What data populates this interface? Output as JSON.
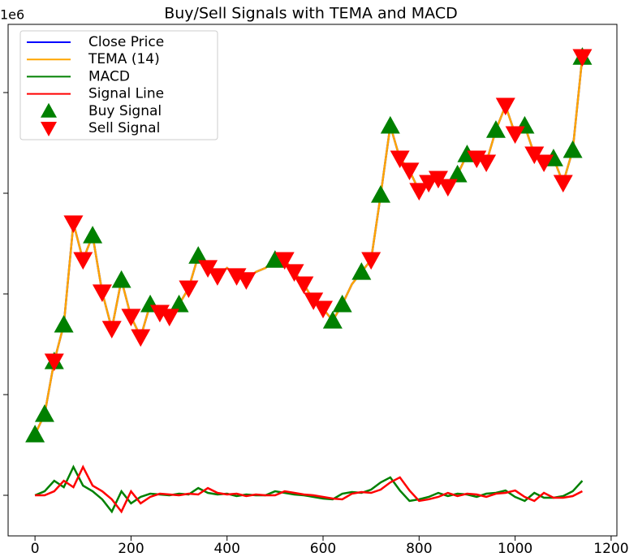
{
  "chart_data": {
    "type": "line",
    "title": "Buy/Sell Signals with TEMA and MACD",
    "y_offset_label": "1e6",
    "legend": "upper left",
    "xlim": [
      -56,
      1212
    ],
    "xticks": [
      0,
      200,
      400,
      600,
      800,
      1000,
      1200
    ],
    "ylim": [
      -201613,
      2338710
    ],
    "yticks": [
      0,
      500000,
      1000000,
      1500000,
      2000000
    ],
    "x": [
      0,
      20,
      40,
      60,
      80,
      100,
      120,
      140,
      160,
      180,
      200,
      220,
      240,
      260,
      280,
      300,
      320,
      340,
      360,
      380,
      400,
      420,
      440,
      460,
      480,
      500,
      520,
      540,
      560,
      580,
      600,
      620,
      640,
      660,
      680,
      700,
      720,
      740,
      760,
      780,
      800,
      820,
      840,
      860,
      880,
      900,
      920,
      940,
      960,
      980,
      1000,
      1020,
      1040,
      1060,
      1080,
      1100,
      1120,
      1140
    ],
    "series": [
      {
        "name": "Close Price",
        "color": "#0000ff",
        "kind": "line",
        "values": [
          302000,
          403000,
          665000,
          847000,
          1351000,
          1169000,
          1290000,
          1008000,
          827000,
          1069000,
          887000,
          786000,
          948000,
          907000,
          887000,
          948000,
          1028000,
          1189000,
          1129000,
          1089000,
          1129000,
          1089000,
          1069000,
          1109000,
          1129000,
          1169000,
          1169000,
          1109000,
          1048000,
          968000,
          927000,
          867000,
          948000,
          1048000,
          1109000,
          1169000,
          1492000,
          1835000,
          1673000,
          1613000,
          1512000,
          1552000,
          1572000,
          1532000,
          1593000,
          1693000,
          1673000,
          1653000,
          1814000,
          1935000,
          1794000,
          1835000,
          1693000,
          1653000,
          1673000,
          1552000,
          1714000,
          2177000
        ]
      },
      {
        "name": "TEMA (14)",
        "color": "#ffa500",
        "kind": "line",
        "values": [
          302000,
          403000,
          665000,
          847000,
          1351000,
          1169000,
          1290000,
          1008000,
          827000,
          1069000,
          887000,
          786000,
          948000,
          907000,
          887000,
          948000,
          1028000,
          1189000,
          1129000,
          1089000,
          1129000,
          1089000,
          1069000,
          1109000,
          1129000,
          1169000,
          1169000,
          1109000,
          1048000,
          968000,
          927000,
          867000,
          948000,
          1048000,
          1109000,
          1169000,
          1492000,
          1835000,
          1673000,
          1613000,
          1512000,
          1552000,
          1572000,
          1532000,
          1593000,
          1693000,
          1673000,
          1653000,
          1814000,
          1935000,
          1794000,
          1835000,
          1693000,
          1653000,
          1673000,
          1552000,
          1714000,
          2177000
        ]
      },
      {
        "name": "MACD",
        "color": "#008000",
        "kind": "line",
        "values": [
          0,
          20000,
          72000,
          40000,
          141000,
          48000,
          20000,
          -20000,
          -81000,
          20000,
          -40000,
          -8000,
          8000,
          4000,
          0,
          8000,
          4000,
          36000,
          12000,
          4000,
          8000,
          -4000,
          4000,
          0,
          0,
          20000,
          12000,
          4000,
          0,
          -8000,
          -16000,
          -20000,
          8000,
          16000,
          12000,
          28000,
          64000,
          89000,
          24000,
          -28000,
          -20000,
          -8000,
          12000,
          -4000,
          8000,
          4000,
          -8000,
          8000,
          12000,
          24000,
          -8000,
          -28000,
          12000,
          -12000,
          -12000,
          -4000,
          20000,
          72000
        ]
      },
      {
        "name": "Signal Line",
        "color": "#ff0000",
        "kind": "line",
        "values": [
          0,
          0,
          20000,
          72000,
          40000,
          141000,
          48000,
          20000,
          -20000,
          -81000,
          20000,
          -40000,
          -8000,
          8000,
          4000,
          0,
          8000,
          4000,
          36000,
          12000,
          4000,
          8000,
          -4000,
          4000,
          0,
          0,
          20000,
          12000,
          4000,
          0,
          -8000,
          -16000,
          -20000,
          8000,
          16000,
          12000,
          28000,
          64000,
          89000,
          24000,
          -28000,
          -20000,
          -8000,
          12000,
          -4000,
          8000,
          4000,
          -8000,
          8000,
          12000,
          24000,
          -8000,
          -28000,
          12000,
          -12000,
          -12000,
          -4000,
          20000
        ]
      },
      {
        "name": "Buy Signal",
        "color": "#008000",
        "kind": "scatter",
        "marker": "^",
        "x": [
          0,
          20,
          40,
          60,
          120,
          180,
          240,
          300,
          340,
          500,
          620,
          640,
          680,
          720,
          740,
          880,
          900,
          960,
          1020,
          1080,
          1120,
          1140
        ],
        "values": [
          302000,
          403000,
          665000,
          847000,
          1290000,
          1069000,
          948000,
          948000,
          1189000,
          1169000,
          867000,
          948000,
          1109000,
          1492000,
          1835000,
          1593000,
          1693000,
          1814000,
          1835000,
          1673000,
          1714000,
          2177000
        ]
      },
      {
        "name": "Sell Signal",
        "color": "#ff0000",
        "kind": "scatter",
        "marker": "v",
        "x": [
          40,
          80,
          100,
          140,
          160,
          200,
          220,
          260,
          280,
          320,
          360,
          380,
          420,
          440,
          520,
          540,
          560,
          580,
          600,
          700,
          760,
          780,
          800,
          820,
          840,
          860,
          920,
          940,
          980,
          1000,
          1040,
          1060,
          1100,
          1140
        ],
        "values": [
          665000,
          1351000,
          1169000,
          1008000,
          827000,
          887000,
          786000,
          907000,
          887000,
          1028000,
          1129000,
          1089000,
          1089000,
          1069000,
          1169000,
          1109000,
          1048000,
          968000,
          927000,
          1169000,
          1673000,
          1613000,
          1512000,
          1552000,
          1572000,
          1532000,
          1673000,
          1653000,
          1935000,
          1794000,
          1693000,
          1653000,
          1552000,
          2177000
        ]
      }
    ]
  }
}
